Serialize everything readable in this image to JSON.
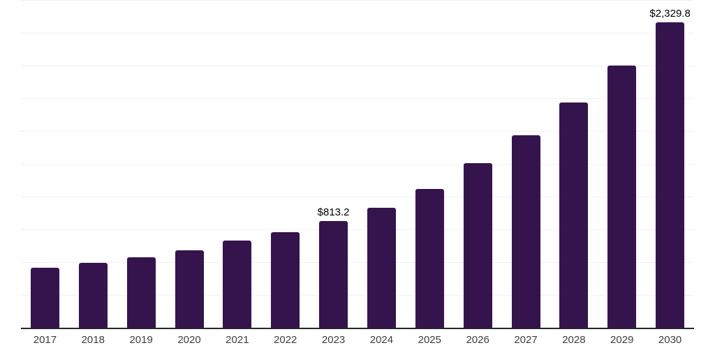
{
  "chart_data": {
    "type": "bar",
    "title": "",
    "xlabel": "",
    "ylabel": "",
    "categories": [
      "2017",
      "2018",
      "2019",
      "2020",
      "2021",
      "2022",
      "2023",
      "2024",
      "2025",
      "2026",
      "2027",
      "2028",
      "2029",
      "2030"
    ],
    "values": [
      455,
      496,
      536,
      590,
      663,
      727,
      813.2,
      915,
      1058,
      1254,
      1468,
      1716,
      2000,
      2329.8
    ],
    "value_labels": [
      null,
      null,
      null,
      null,
      null,
      null,
      "$813.2",
      null,
      null,
      null,
      null,
      null,
      null,
      "$2,329.8"
    ],
    "ylim": [
      0,
      2500
    ],
    "gridline_step": 250,
    "grid": "horizontal-only",
    "y_axis_tick_labels": "none",
    "legend": "none",
    "bar_color": "#35134d",
    "value_label_color": "#000000",
    "tick_label_color": "#3d3d3d",
    "gridline_color": "#f1f1f1",
    "axis_line_color": "#262626"
  }
}
